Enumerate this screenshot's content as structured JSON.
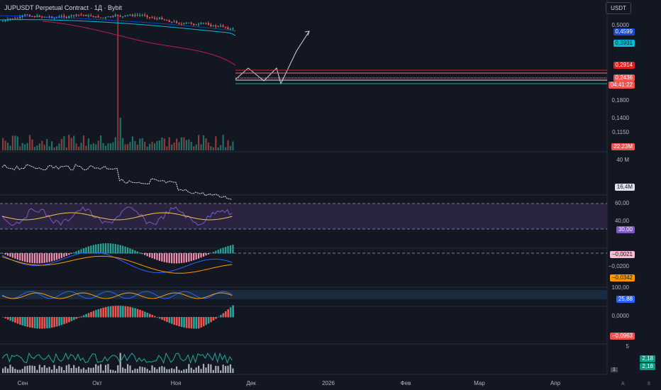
{
  "header": {
    "title": "JUPUSDT Perpetual Contract · 1Д · Bybit",
    "unit_button": "USDT"
  },
  "price_axis": {
    "ticks": [
      "0,5000",
      "0,1800",
      "0,1400",
      "0,1150"
    ],
    "tags": {
      "ma_blue": "0,4599",
      "ma_cyan": "0,3931",
      "level_red": "0,2914",
      "last_price": "0,2436",
      "countdown": "04:41:22",
      "volume": "22,23M"
    }
  },
  "pane_obv": {
    "tick": "40 M",
    "tag": "16,4M"
  },
  "pane_rsi": {
    "ticks": [
      "60,00",
      "40,00"
    ],
    "tag": "30,00"
  },
  "pane_macd": {
    "ticks": [
      "−0,0200"
    ],
    "tags": {
      "hist": "−0,0021",
      "line_orange": "−0,0342"
    }
  },
  "pane_stoch": {
    "tick": "100,00",
    "tag": "25,88"
  },
  "pane_ao": {
    "ticks": [
      "0,0000"
    ],
    "tag": "−0,0963"
  },
  "pane_last": {
    "tick": "5",
    "tags": [
      "2,18",
      "2,18"
    ]
  },
  "time_axis": [
    "Сен",
    "Окт",
    "Ноя",
    "Дек",
    "2026",
    "Фев",
    "Мар",
    "Апр"
  ],
  "corner_labels": {
    "page": "1",
    "a": "A",
    "b": "8"
  },
  "colors": {
    "bg": "#131722",
    "up": "#26a69a",
    "down": "#ef5350",
    "ma_blue": "#2962ff",
    "ma_cyan": "#00bcd4",
    "ma_red": "#c2185b",
    "rsi_band": "#7e57c2",
    "orange": "#ff9800"
  }
}
